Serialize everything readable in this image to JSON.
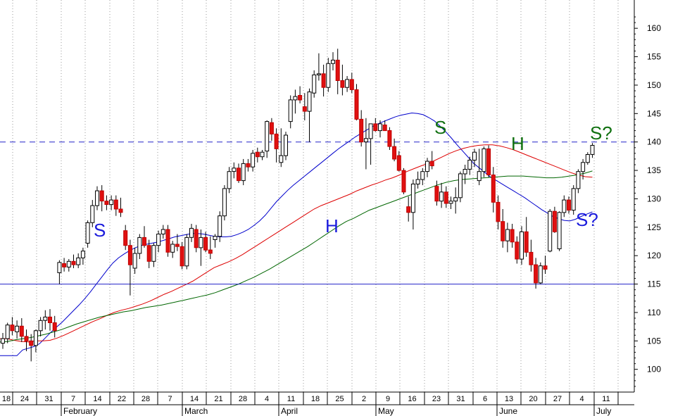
{
  "chart_data": {
    "type": "candlestick",
    "title": "",
    "xlabel": "",
    "ylabel": "",
    "ylim": [
      96,
      164
    ],
    "y_ticks": [
      100,
      105,
      110,
      115,
      120,
      125,
      130,
      135,
      140,
      145,
      150,
      155,
      160
    ],
    "grid": "vertical dotted",
    "x_tick_labels": [
      "18",
      "24",
      "31",
      "7",
      "14",
      "22",
      "28",
      "7",
      "14",
      "21",
      "28",
      "4",
      "11",
      "18",
      "25",
      "2",
      "9",
      "16",
      "23",
      "31",
      "6",
      "13",
      "20",
      "27",
      "4",
      "11"
    ],
    "month_labels": [
      "February",
      "March",
      "April",
      "May",
      "June",
      "July"
    ],
    "candles": [
      [
        104.6,
        106.4,
        103.6,
        105.4
      ],
      [
        105.4,
        108.2,
        104.6,
        107.8
      ],
      [
        107.8,
        109.2,
        106.0,
        106.8
      ],
      [
        106.6,
        108.6,
        105.4,
        107.6
      ],
      [
        107.6,
        109.0,
        104.8,
        105.8
      ],
      [
        105.8,
        107.0,
        103.2,
        105.0
      ],
      [
        105.0,
        106.2,
        101.4,
        104.2
      ],
      [
        104.2,
        107.0,
        103.0,
        106.8
      ],
      [
        106.8,
        109.2,
        105.8,
        108.6
      ],
      [
        108.6,
        110.4,
        107.0,
        109.2
      ],
      [
        109.2,
        110.6,
        106.8,
        108.2
      ],
      [
        108.2,
        109.4,
        105.6,
        106.8
      ],
      [
        117.0,
        119.2,
        115.0,
        118.8
      ],
      [
        118.6,
        119.6,
        117.2,
        118.0
      ],
      [
        118.0,
        119.4,
        117.2,
        119.0
      ],
      [
        119.0,
        120.2,
        117.8,
        118.4
      ],
      [
        118.4,
        120.4,
        117.8,
        119.6
      ],
      [
        119.6,
        121.4,
        118.4,
        120.8
      ],
      [
        122.2,
        126.2,
        121.4,
        125.8
      ],
      [
        125.8,
        129.8,
        125.0,
        128.8
      ],
      [
        128.8,
        132.2,
        128.0,
        131.4
      ],
      [
        131.4,
        132.4,
        127.8,
        129.6
      ],
      [
        129.6,
        130.6,
        128.0,
        129.0
      ],
      [
        129.0,
        130.6,
        128.0,
        129.8
      ],
      [
        129.8,
        130.6,
        127.0,
        128.2
      ],
      [
        128.2,
        130.2,
        126.8,
        127.6
      ],
      [
        124.4,
        125.4,
        121.0,
        121.8
      ],
      [
        121.8,
        122.8,
        113.0,
        118.4
      ],
      [
        117.8,
        121.4,
        116.8,
        120.4
      ],
      [
        120.4,
        123.8,
        119.4,
        123.2
      ],
      [
        123.2,
        125.2,
        121.4,
        121.8
      ],
      [
        121.8,
        122.8,
        117.8,
        119.0
      ],
      [
        119.0,
        122.2,
        118.0,
        121.8
      ],
      [
        121.8,
        124.4,
        120.6,
        123.8
      ],
      [
        123.8,
        125.4,
        123.0,
        124.6
      ],
      [
        124.6,
        125.4,
        119.8,
        120.6
      ],
      [
        120.6,
        122.6,
        119.6,
        122.0
      ],
      [
        122.0,
        123.8,
        120.8,
        121.6
      ],
      [
        121.6,
        122.4,
        117.6,
        118.2
      ],
      [
        118.2,
        123.8,
        117.6,
        123.2
      ],
      [
        123.2,
        125.6,
        122.4,
        124.8
      ],
      [
        124.6,
        125.4,
        120.6,
        121.4
      ],
      [
        121.4,
        124.6,
        118.2,
        123.2
      ],
      [
        123.2,
        124.2,
        120.6,
        121.0
      ],
      [
        121.0,
        123.4,
        119.4,
        120.4
      ],
      [
        122.8,
        123.8,
        121.4,
        123.4
      ],
      [
        123.4,
        127.8,
        122.4,
        127.0
      ],
      [
        127.0,
        132.4,
        126.2,
        131.8
      ],
      [
        131.8,
        135.6,
        131.0,
        134.8
      ],
      [
        134.8,
        136.4,
        133.6,
        135.4
      ],
      [
        135.4,
        136.2,
        132.8,
        133.2
      ],
      [
        133.2,
        137.0,
        132.4,
        136.2
      ],
      [
        136.2,
        137.0,
        134.8,
        135.6
      ],
      [
        135.6,
        138.6,
        134.8,
        138.0
      ],
      [
        138.2,
        139.0,
        136.4,
        137.4
      ],
      [
        137.4,
        138.6,
        136.8,
        138.2
      ],
      [
        138.4,
        143.8,
        137.2,
        143.6
      ],
      [
        143.4,
        144.2,
        140.2,
        141.4
      ],
      [
        141.4,
        142.4,
        136.4,
        138.8
      ],
      [
        136.4,
        142.4,
        135.6,
        137.6
      ],
      [
        137.6,
        141.8,
        136.8,
        141.2
      ],
      [
        143.6,
        148.2,
        142.4,
        147.4
      ],
      [
        147.4,
        149.2,
        145.0,
        148.0
      ],
      [
        148.2,
        149.8,
        146.8,
        147.4
      ],
      [
        146.2,
        148.6,
        143.8,
        145.4
      ],
      [
        145.4,
        149.4,
        140.0,
        148.8
      ],
      [
        148.6,
        152.6,
        147.8,
        151.8
      ],
      [
        151.8,
        155.6,
        150.8,
        152.0
      ],
      [
        152.0,
        153.6,
        148.0,
        149.6
      ],
      [
        149.6,
        154.8,
        148.8,
        153.8
      ],
      [
        153.8,
        155.8,
        152.6,
        154.4
      ],
      [
        154.4,
        156.4,
        148.4,
        150.8
      ],
      [
        150.8,
        153.6,
        148.2,
        149.6
      ],
      [
        149.6,
        151.6,
        148.8,
        151.0
      ],
      [
        151.0,
        152.2,
        148.6,
        149.2
      ],
      [
        149.2,
        150.2,
        143.8,
        144.0
      ],
      [
        144.0,
        145.6,
        139.2,
        140.0
      ],
      [
        140.0,
        144.2,
        135.2,
        140.6
      ],
      [
        140.6,
        143.2,
        136.0,
        143.2
      ],
      [
        143.2,
        144.2,
        141.8,
        142.0
      ],
      [
        142.0,
        143.8,
        140.8,
        143.2
      ],
      [
        143.0,
        143.8,
        142.0,
        142.0
      ],
      [
        142.0,
        142.6,
        138.6,
        139.2
      ],
      [
        139.2,
        140.6,
        136.6,
        137.0
      ],
      [
        137.6,
        138.4,
        134.8,
        135.0
      ],
      [
        135.0,
        135.4,
        130.8,
        131.2
      ],
      [
        128.6,
        130.4,
        126.0,
        127.6
      ],
      [
        127.6,
        133.4,
        124.6,
        132.6
      ],
      [
        132.6,
        134.8,
        131.8,
        133.4
      ],
      [
        133.4,
        135.4,
        132.4,
        134.8
      ],
      [
        134.8,
        137.2,
        133.8,
        136.6
      ],
      [
        136.6,
        138.4,
        135.2,
        135.8
      ],
      [
        132.2,
        133.2,
        128.8,
        129.6
      ],
      [
        129.6,
        132.8,
        128.4,
        131.2
      ],
      [
        131.2,
        132.2,
        128.4,
        129.2
      ],
      [
        129.2,
        130.4,
        128.2,
        129.6
      ],
      [
        129.6,
        132.0,
        127.4,
        130.2
      ],
      [
        130.2,
        134.8,
        129.4,
        134.4
      ],
      [
        134.4,
        136.0,
        132.6,
        135.2
      ],
      [
        135.2,
        137.4,
        134.2,
        136.8
      ],
      [
        136.8,
        138.8,
        135.6,
        138.2
      ],
      [
        133.2,
        138.8,
        132.4,
        134.8
      ],
      [
        134.8,
        139.2,
        133.8,
        138.8
      ],
      [
        138.8,
        139.4,
        133.8,
        134.2
      ],
      [
        134.2,
        135.6,
        127.6,
        129.4
      ],
      [
        129.4,
        130.6,
        124.6,
        126.0
      ],
      [
        126.0,
        128.2,
        121.4,
        122.6
      ],
      [
        122.6,
        125.8,
        120.6,
        124.6
      ],
      [
        124.6,
        125.6,
        121.4,
        122.4
      ],
      [
        122.4,
        123.4,
        118.6,
        119.4
      ],
      [
        119.4,
        125.2,
        118.4,
        124.2
      ],
      [
        124.2,
        126.8,
        119.8,
        120.6
      ],
      [
        120.6,
        122.8,
        117.2,
        118.4
      ],
      [
        118.4,
        119.6,
        114.2,
        115.2
      ],
      [
        115.2,
        118.8,
        115.0,
        118.2
      ],
      [
        118.2,
        120.0,
        116.8,
        117.6
      ],
      [
        120.8,
        128.2,
        120.6,
        127.8
      ],
      [
        127.8,
        128.6,
        124.0,
        124.2
      ],
      [
        121.2,
        127.8,
        120.8,
        127.6
      ],
      [
        127.6,
        130.6,
        126.8,
        129.8
      ],
      [
        129.8,
        130.4,
        127.4,
        128.0
      ],
      [
        128.0,
        132.4,
        127.2,
        131.8
      ],
      [
        131.8,
        135.2,
        131.0,
        134.8
      ],
      [
        134.8,
        137.0,
        133.4,
        136.4
      ],
      [
        136.4,
        138.2,
        136.0,
        137.8
      ],
      [
        137.8,
        139.8,
        137.2,
        139.4
      ]
    ],
    "series": [
      {
        "name": "",
        "color": "#0000cc",
        "values": [
          102.4,
          102.4,
          102.4,
          102.4,
          103.4,
          103.7,
          104.0,
          104.5,
          105.5,
          106.5,
          107.4,
          108.3,
          109.3,
          110.3,
          111.3,
          112.4,
          113.6,
          114.9,
          116.2,
          117.5,
          118.7,
          119.6,
          120.3,
          120.9,
          121.4,
          121.8,
          122.0,
          122.2,
          122.4,
          122.7,
          123.0,
          123.3,
          123.5,
          123.7,
          123.9,
          123.9,
          123.8,
          123.6,
          123.4,
          123.3,
          123.3,
          123.4,
          123.7,
          124.1,
          124.6,
          125.3,
          126.1,
          127.1,
          128.3,
          129.5,
          130.5,
          131.5,
          132.4,
          133.2,
          134.0,
          134.8,
          135.6,
          136.4,
          137.2,
          138.0,
          138.8,
          139.5,
          140.2,
          140.9,
          141.5,
          142.1,
          142.7,
          143.2,
          143.6,
          144.0,
          144.4,
          144.7,
          144.9,
          145.1,
          145.0,
          144.8,
          144.3,
          143.7,
          142.8,
          141.8,
          140.7,
          139.5,
          138.4,
          137.3,
          136.2,
          135.4,
          134.6,
          133.8,
          133.2,
          132.6,
          132.0,
          131.4,
          130.8,
          130.2,
          129.5,
          128.8,
          128.1,
          127.5,
          126.9,
          126.5,
          126.2,
          126.1,
          126.4,
          126.9,
          127.3,
          127.7
        ]
      },
      {
        "name": "",
        "color": "#dd0000",
        "values": [
          105.4,
          105.4,
          105.1,
          104.9,
          104.8,
          105.0,
          105.0,
          105.1,
          105.5,
          106.0,
          106.6,
          107.2,
          107.8,
          108.4,
          108.9,
          109.5,
          110.0,
          110.4,
          110.7,
          111.1,
          111.5,
          112.0,
          112.6,
          113.2,
          113.7,
          114.3,
          114.9,
          115.5,
          116.3,
          117.1,
          117.9,
          118.4,
          118.9,
          119.5,
          120.2,
          121.0,
          121.8,
          122.6,
          123.4,
          124.2,
          125.0,
          125.8,
          126.6,
          127.4,
          128.2,
          128.8,
          129.3,
          129.8,
          130.3,
          130.8,
          131.4,
          131.9,
          132.4,
          132.8,
          133.3,
          133.7,
          134.2,
          134.8,
          135.3,
          135.8,
          136.2,
          136.8,
          137.4,
          138.0,
          138.5,
          138.9,
          139.2,
          139.4,
          139.5,
          139.5,
          139.3,
          139.0,
          138.6,
          138.1,
          137.6,
          137.1,
          136.6,
          136.1,
          135.6,
          135.1,
          134.6,
          134.2,
          133.9,
          133.8
        ]
      },
      {
        "name": "",
        "color": "#006600",
        "values": [
          104.8,
          104.9,
          105.2,
          105.4,
          105.6,
          105.9,
          106.2,
          106.6,
          107.0,
          107.5,
          108.0,
          108.4,
          108.8,
          109.2,
          109.5,
          109.8,
          110.1,
          110.3,
          110.6,
          110.9,
          111.1,
          111.3,
          111.6,
          111.9,
          112.2,
          112.5,
          112.8,
          113.1,
          113.5,
          114.0,
          114.5,
          115.0,
          115.6,
          116.2,
          116.9,
          117.6,
          118.4,
          119.2,
          120.0,
          120.8,
          121.6,
          122.5,
          123.4,
          124.3,
          125.2,
          126.0,
          126.6,
          127.3,
          128.0,
          128.5,
          129.0,
          129.5,
          130.0,
          130.5,
          131.0,
          131.5,
          132.0,
          132.5,
          132.9,
          133.2,
          133.4,
          133.5,
          133.6,
          133.7,
          133.8,
          133.9,
          134.0,
          134.0,
          134.0,
          133.9,
          133.8,
          133.7,
          133.7,
          133.8,
          134.0,
          134.2,
          134.5,
          134.9
        ]
      }
    ],
    "resistance_level": 140,
    "support_level": 115,
    "annotations": [
      "S",
      "H",
      "S?",
      "S",
      "H",
      "S?"
    ]
  }
}
